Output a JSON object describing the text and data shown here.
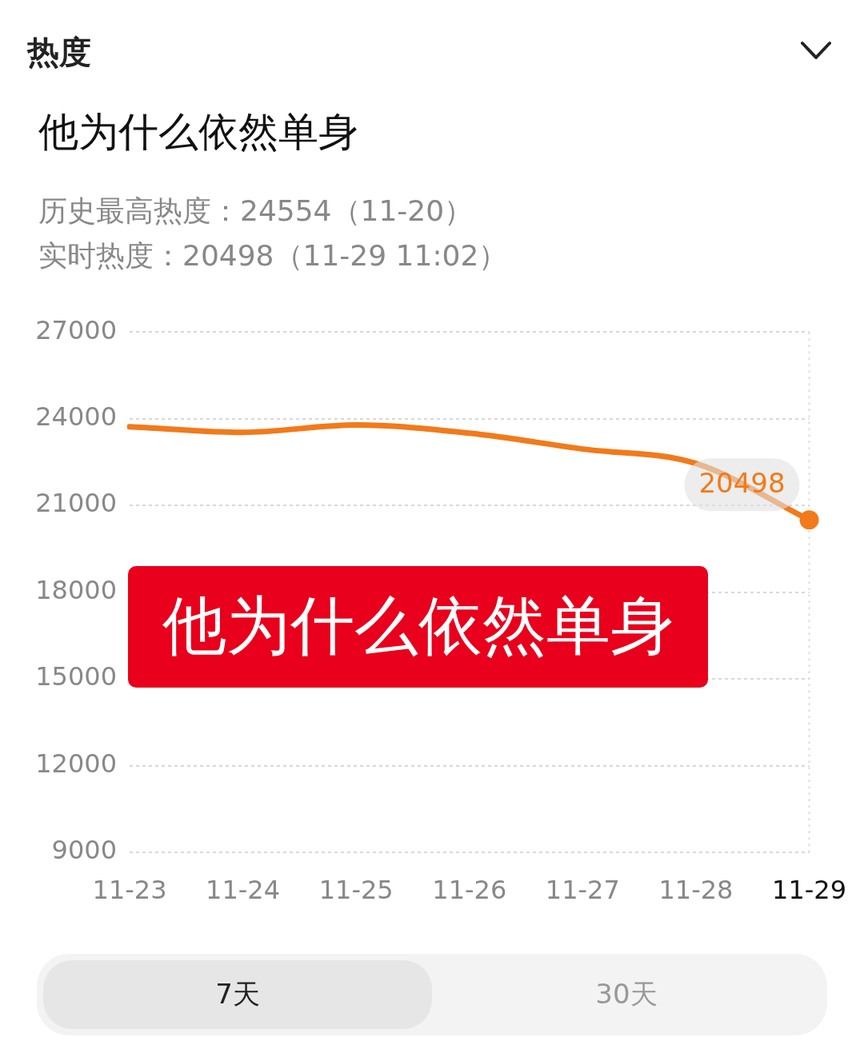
{
  "chart_data": {
    "type": "line",
    "title": "他为什么依然单身",
    "subtitle": "历史最高热度：24554（11-20）",
    "categories": [
      "11-23",
      "11-24",
      "11-25",
      "11-26",
      "11-27",
      "11-28",
      "11-29"
    ],
    "series": [
      {
        "color": "#f27a1a",
        "values": [
          23720,
          23530,
          23780,
          23500,
          22950,
          22450,
          20498
        ]
      }
    ],
    "ylim": [
      9000,
      27000
    ],
    "yticks": [
      9000,
      12000,
      15000,
      18000,
      21000,
      24000,
      27000
    ],
    "grid": "y",
    "legend": false,
    "marker": "none",
    "line_style": "solid",
    "ref_lines": [
      {
        "axis": "x",
        "value": "11-29",
        "color": "#dddddd",
        "line_style": "dotted"
      }
    ],
    "annotations": [
      "热度",
      "他为什么依然单身",
      "实时热度：20498（11-29 11:02）",
      "7天",
      "30天",
      {
        "text": "20498",
        "x": "11-29",
        "y": 20498
      }
    ]
  }
}
